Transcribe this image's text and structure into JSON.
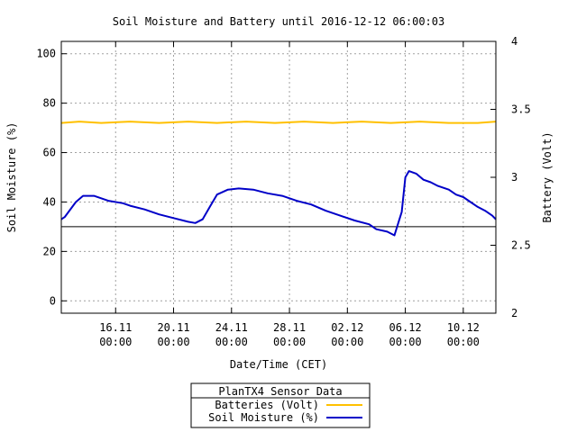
{
  "chart_data": {
    "type": "line",
    "title": "Soil Moisture and Battery until 2016-12-12 06:00:03",
    "xlabel": "Date/Time (CET)",
    "ylabel": "Soil Moisture (%)",
    "y2label": "Battery (Volt)",
    "xlim": [
      "2016-11-12 06:00",
      "2016-12-12 06:00"
    ],
    "ylim": [
      -5,
      105
    ],
    "y2lim": [
      2,
      4
    ],
    "yticks": [
      0,
      20,
      40,
      60,
      80,
      100
    ],
    "y2ticks": [
      2,
      2.5,
      3,
      3.5,
      4
    ],
    "y2ticklabels": [
      "2",
      "2.5",
      "3",
      "3.5",
      "4"
    ],
    "xticks": [
      {
        "at": "2016-11-16 00:00",
        "line1": "16.11",
        "line2": "00:00"
      },
      {
        "at": "2016-11-20 00:00",
        "line1": "20.11",
        "line2": "00:00"
      },
      {
        "at": "2016-11-24 00:00",
        "line1": "24.11",
        "line2": "00:00"
      },
      {
        "at": "2016-11-28 00:00",
        "line1": "28.11",
        "line2": "00:00"
      },
      {
        "at": "2016-12-02 00:00",
        "line1": "02.12",
        "line2": "00:00"
      },
      {
        "at": "2016-12-06 00:00",
        "line1": "06.12",
        "line2": "00:00"
      },
      {
        "at": "2016-12-10 00:00",
        "line1": "10.12",
        "line2": "00:00"
      }
    ],
    "grid": true,
    "legend_title": "PlanTX4 Sensor Data",
    "legend_position": "bottom-center",
    "threshold_line": {
      "axis": "y",
      "value": 30,
      "color": "#000000"
    },
    "series": [
      {
        "name": "Batteries (Volt)",
        "axis": "y2",
        "color": "#ffc000",
        "points": [
          [
            "2016-11-12 06:00",
            3.4
          ],
          [
            "2016-11-13 12:00",
            3.41
          ],
          [
            "2016-11-15 00:00",
            3.4
          ],
          [
            "2016-11-17 00:00",
            3.41
          ],
          [
            "2016-11-19 00:00",
            3.4
          ],
          [
            "2016-11-21 00:00",
            3.41
          ],
          [
            "2016-11-23 00:00",
            3.4
          ],
          [
            "2016-11-25 00:00",
            3.41
          ],
          [
            "2016-11-27 00:00",
            3.4
          ],
          [
            "2016-11-29 00:00",
            3.41
          ],
          [
            "2016-12-01 00:00",
            3.4
          ],
          [
            "2016-12-03 00:00",
            3.41
          ],
          [
            "2016-12-05 00:00",
            3.4
          ],
          [
            "2016-12-07 00:00",
            3.41
          ],
          [
            "2016-12-09 00:00",
            3.4
          ],
          [
            "2016-12-11 00:00",
            3.4
          ],
          [
            "2016-12-12 06:00",
            3.41
          ]
        ]
      },
      {
        "name": "Soil Moisture (%)",
        "axis": "y",
        "color": "#0000c8",
        "points": [
          [
            "2016-11-12 06:00",
            33.0
          ],
          [
            "2016-11-12 12:00",
            34.0
          ],
          [
            "2016-11-13 06:00",
            40.0
          ],
          [
            "2016-11-13 18:00",
            42.5
          ],
          [
            "2016-11-14 12:00",
            42.5
          ],
          [
            "2016-11-15 00:00",
            41.5
          ],
          [
            "2016-11-15 12:00",
            40.5
          ],
          [
            "2016-11-16 12:00",
            39.5
          ],
          [
            "2016-11-17 00:00",
            38.5
          ],
          [
            "2016-11-18 00:00",
            37.0
          ],
          [
            "2016-11-19 00:00",
            35.0
          ],
          [
            "2016-11-20 00:00",
            33.5
          ],
          [
            "2016-11-21 00:00",
            32.0
          ],
          [
            "2016-11-21 12:00",
            31.5
          ],
          [
            "2016-11-22 00:00",
            33.0
          ],
          [
            "2016-11-22 12:00",
            38.0
          ],
          [
            "2016-11-23 00:00",
            43.0
          ],
          [
            "2016-11-23 18:00",
            45.0
          ],
          [
            "2016-11-24 12:00",
            45.5
          ],
          [
            "2016-11-25 12:00",
            45.0
          ],
          [
            "2016-11-26 12:00",
            43.5
          ],
          [
            "2016-11-27 12:00",
            42.5
          ],
          [
            "2016-11-28 12:00",
            40.5
          ],
          [
            "2016-11-29 12:00",
            39.0
          ],
          [
            "2016-11-30 12:00",
            36.5
          ],
          [
            "2016-12-01 12:00",
            34.5
          ],
          [
            "2016-12-02 12:00",
            32.5
          ],
          [
            "2016-12-03 12:00",
            31.0
          ],
          [
            "2016-12-04 00:00",
            29.0
          ],
          [
            "2016-12-04 18:00",
            28.0
          ],
          [
            "2016-12-05 06:00",
            26.5
          ],
          [
            "2016-12-05 18:00",
            36.0
          ],
          [
            "2016-12-06 00:00",
            50.0
          ],
          [
            "2016-12-06 06:00",
            52.5
          ],
          [
            "2016-12-06 18:00",
            51.5
          ],
          [
            "2016-12-07 06:00",
            49.0
          ],
          [
            "2016-12-07 18:00",
            48.0
          ],
          [
            "2016-12-08 06:00",
            46.5
          ],
          [
            "2016-12-09 00:00",
            45.0
          ],
          [
            "2016-12-09 12:00",
            43.0
          ],
          [
            "2016-12-10 00:00",
            42.0
          ],
          [
            "2016-12-10 12:00",
            40.0
          ],
          [
            "2016-12-11 00:00",
            38.0
          ],
          [
            "2016-12-11 12:00",
            36.5
          ],
          [
            "2016-12-12 00:00",
            34.5
          ],
          [
            "2016-12-12 06:00",
            33.0
          ]
        ]
      }
    ]
  }
}
